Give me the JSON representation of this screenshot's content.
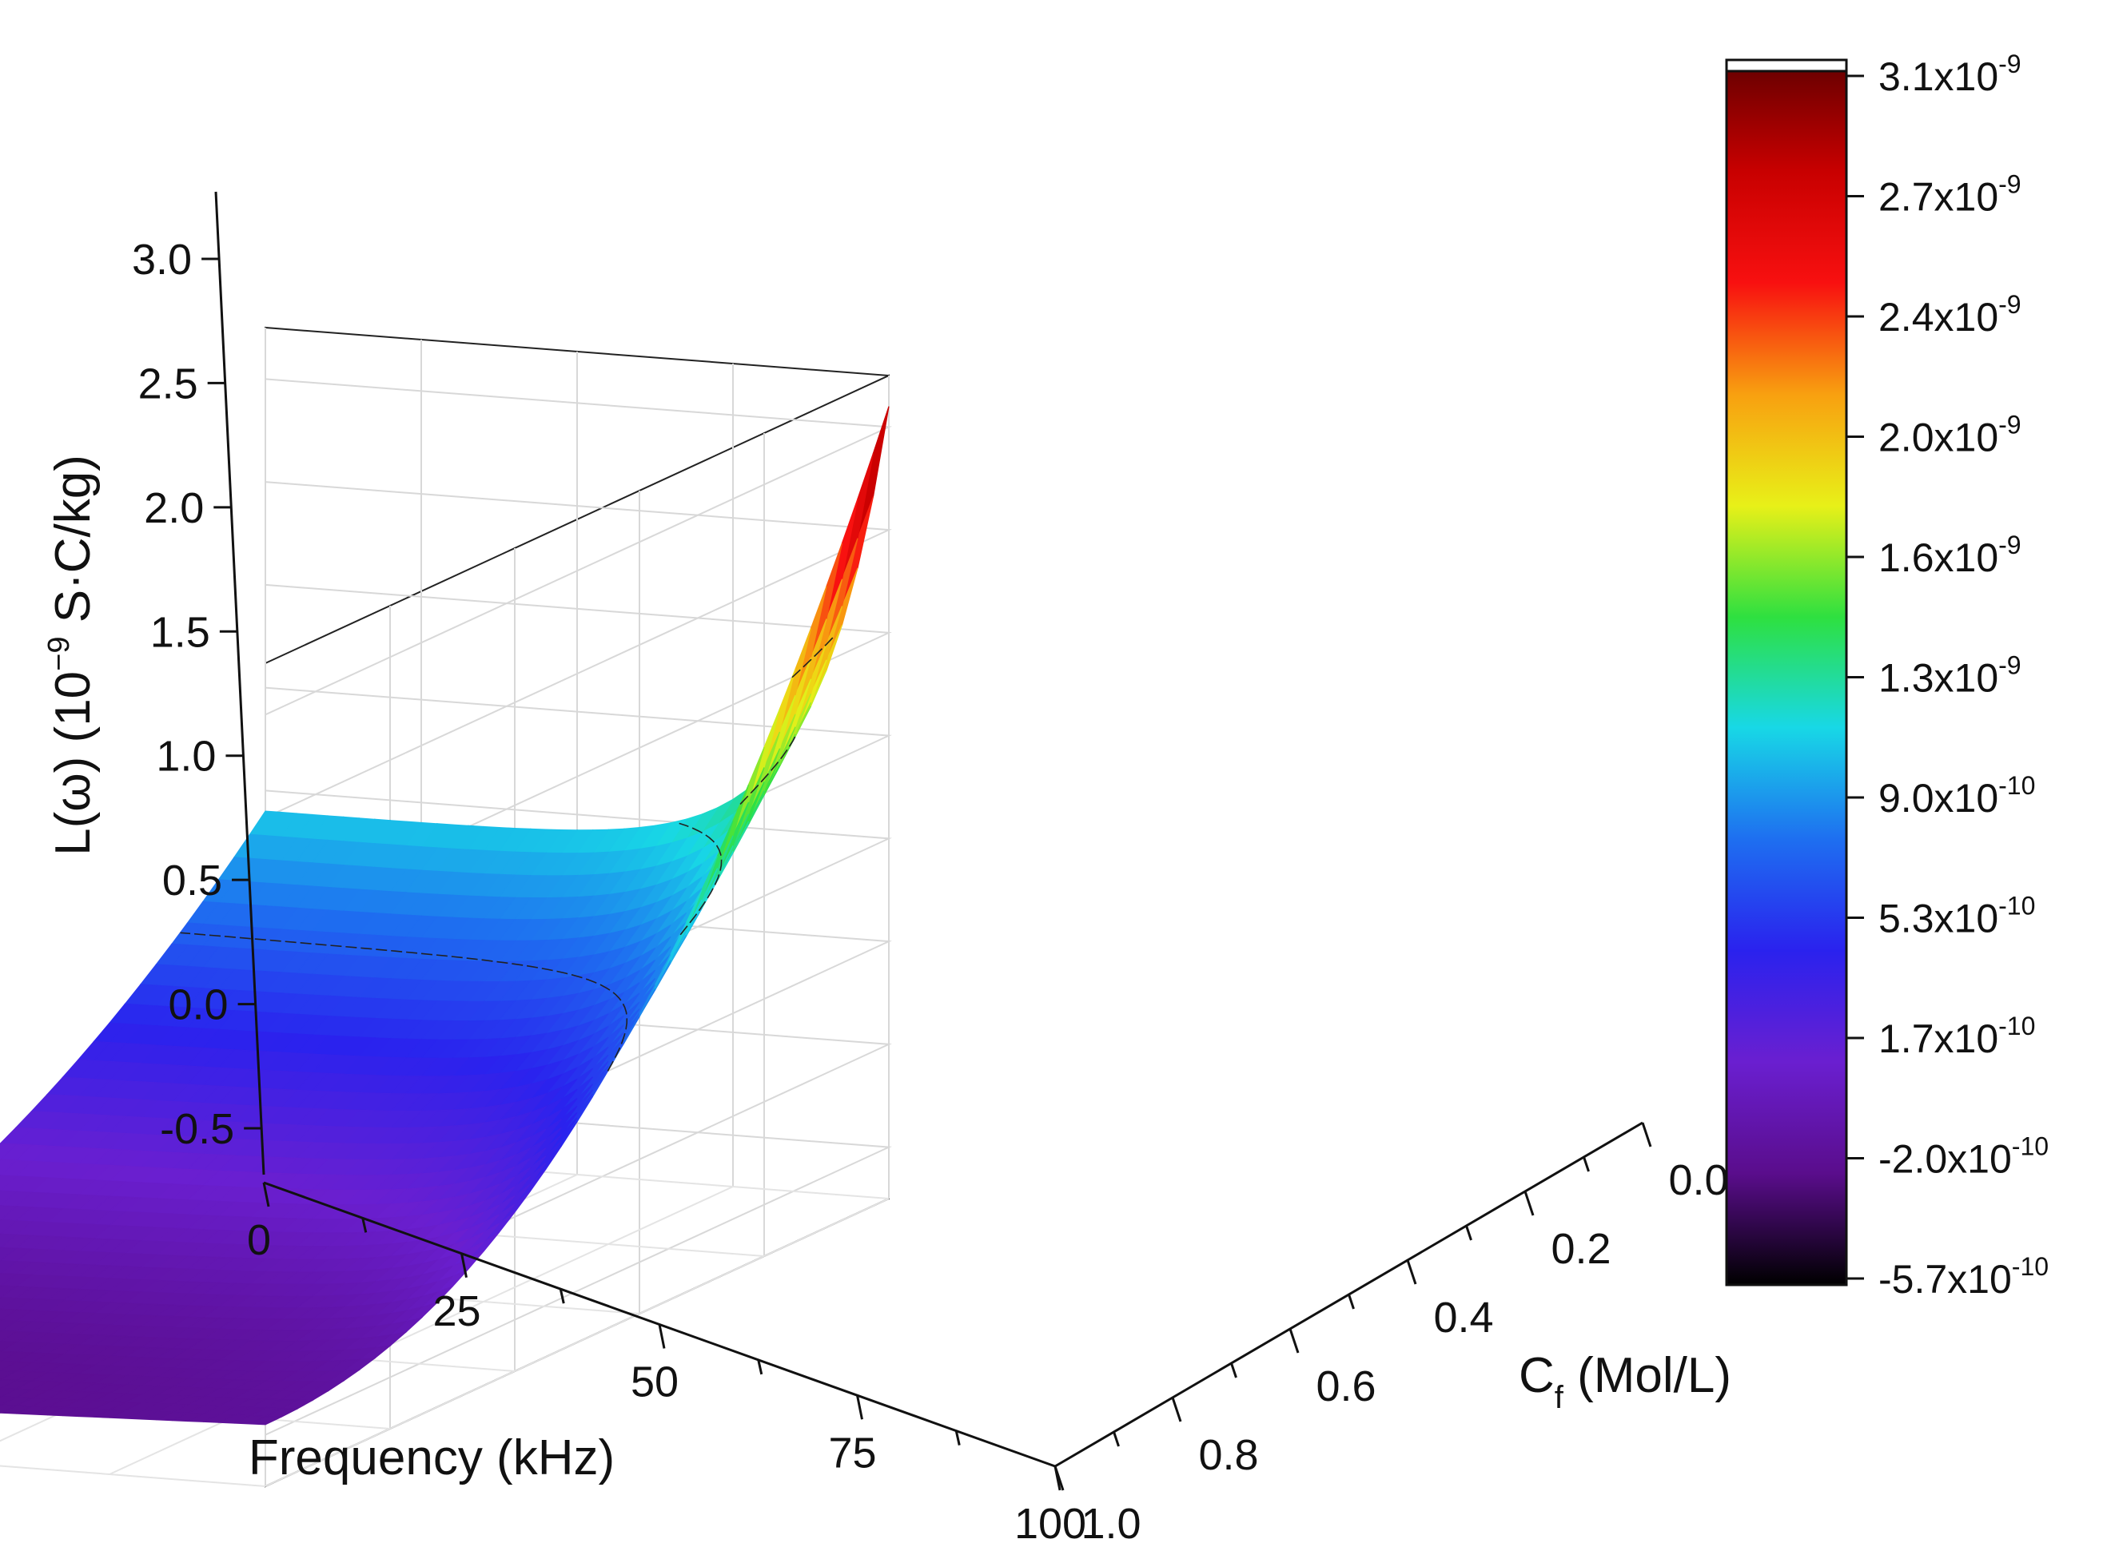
{
  "chart_data": {
    "type": "surface3d",
    "title": "",
    "xlabel": "Frequency (kHz)",
    "ylabel_main": "C",
    "ylabel_sub": "f",
    "ylabel_unit": "(Mol/L)",
    "zlabel": "L(ω) (10",
    "zlabel_exp": "−9",
    "zlabel_unit": "S·C/kg)",
    "x_ticks": [
      "0",
      "25",
      "50",
      "75",
      "100"
    ],
    "y_ticks": [
      "0.0",
      "0.2",
      "0.4",
      "0.6",
      "0.8",
      "1.0"
    ],
    "z_ticks": [
      "-0.5",
      "0.0",
      "0.5",
      "1.0",
      "1.5",
      "2.0",
      "2.5",
      "3.0"
    ],
    "xlim": [
      0,
      100
    ],
    "ylim": [
      0,
      1
    ],
    "zlim": [
      -0.75,
      3.25
    ],
    "surface_corners": [
      {
        "frequency_khz": 0,
        "cf_mol_l": 0.0,
        "L": 3.1
      },
      {
        "frequency_khz": 100,
        "cf_mol_l": 0.0,
        "L": 0.9
      },
      {
        "frequency_khz": 0,
        "cf_mol_l": 1.0,
        "L": -0.45
      },
      {
        "frequency_khz": 100,
        "cf_mol_l": 1.0,
        "L": -0.55
      }
    ],
    "contour_levels": [
      0.5,
      1.0,
      1.5,
      2.0
    ],
    "colorbar": {
      "labels": [
        {
          "m": "3.1x10",
          "e": "-9"
        },
        {
          "m": "2.7x10",
          "e": "-9"
        },
        {
          "m": "2.4x10",
          "e": "-9"
        },
        {
          "m": "2.0x10",
          "e": "-9"
        },
        {
          "m": "1.6x10",
          "e": "-9"
        },
        {
          "m": "1.3x10",
          "e": "-9"
        },
        {
          "m": "9.0x10",
          "e": "-10"
        },
        {
          "m": "5.3x10",
          "e": "-10"
        },
        {
          "m": "1.7x10",
          "e": "-10"
        },
        {
          "m": "-2.0x10",
          "e": "-10"
        },
        {
          "m": "-5.7x10",
          "e": "-10"
        }
      ],
      "colors": [
        "#000000",
        "#5a0d8c",
        "#6a1fd0",
        "#2a22ee",
        "#1e6ff0",
        "#18d8e6",
        "#2ee040",
        "#e8f018",
        "#f8a010",
        "#f81010",
        "#c80000",
        "#640000"
      ]
    }
  }
}
